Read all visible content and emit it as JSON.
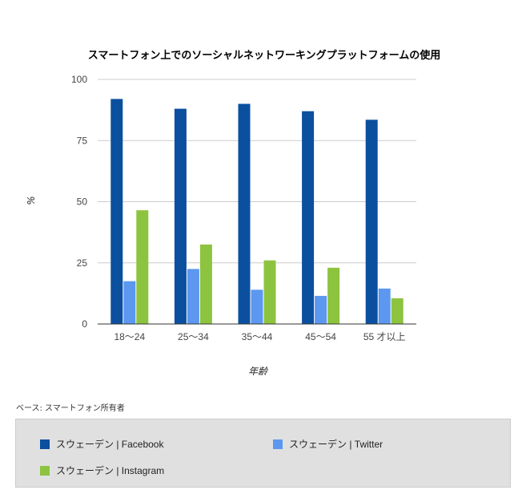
{
  "chart_data": {
    "type": "bar",
    "title": "スマートフォン上でのソーシャルネットワーキングプラットフォームの使用",
    "xlabel": "年齢",
    "ylabel": "%",
    "ylim": [
      0,
      100
    ],
    "yticks": [
      "0",
      "25",
      "50",
      "75",
      "100"
    ],
    "categories": [
      "18〜24",
      "25〜34",
      "35〜44",
      "45〜54",
      "55 才以上"
    ],
    "series": [
      {
        "name": "スウェーデン | Facebook",
        "color": "#0b4f9f",
        "values": [
          92,
          88,
          90,
          87,
          83.5
        ]
      },
      {
        "name": "スウェーデン | Twitter",
        "color": "#5c97f0",
        "values": [
          17.5,
          22.5,
          14,
          11.5,
          14.5
        ]
      },
      {
        "name": "スウェーデン | Instagram",
        "color": "#8cc43f",
        "values": [
          46.5,
          32.5,
          26,
          23,
          10.5
        ]
      }
    ],
    "grid": true,
    "legend_position": "bottom"
  },
  "note": "ベース: スマートフォン所有者"
}
